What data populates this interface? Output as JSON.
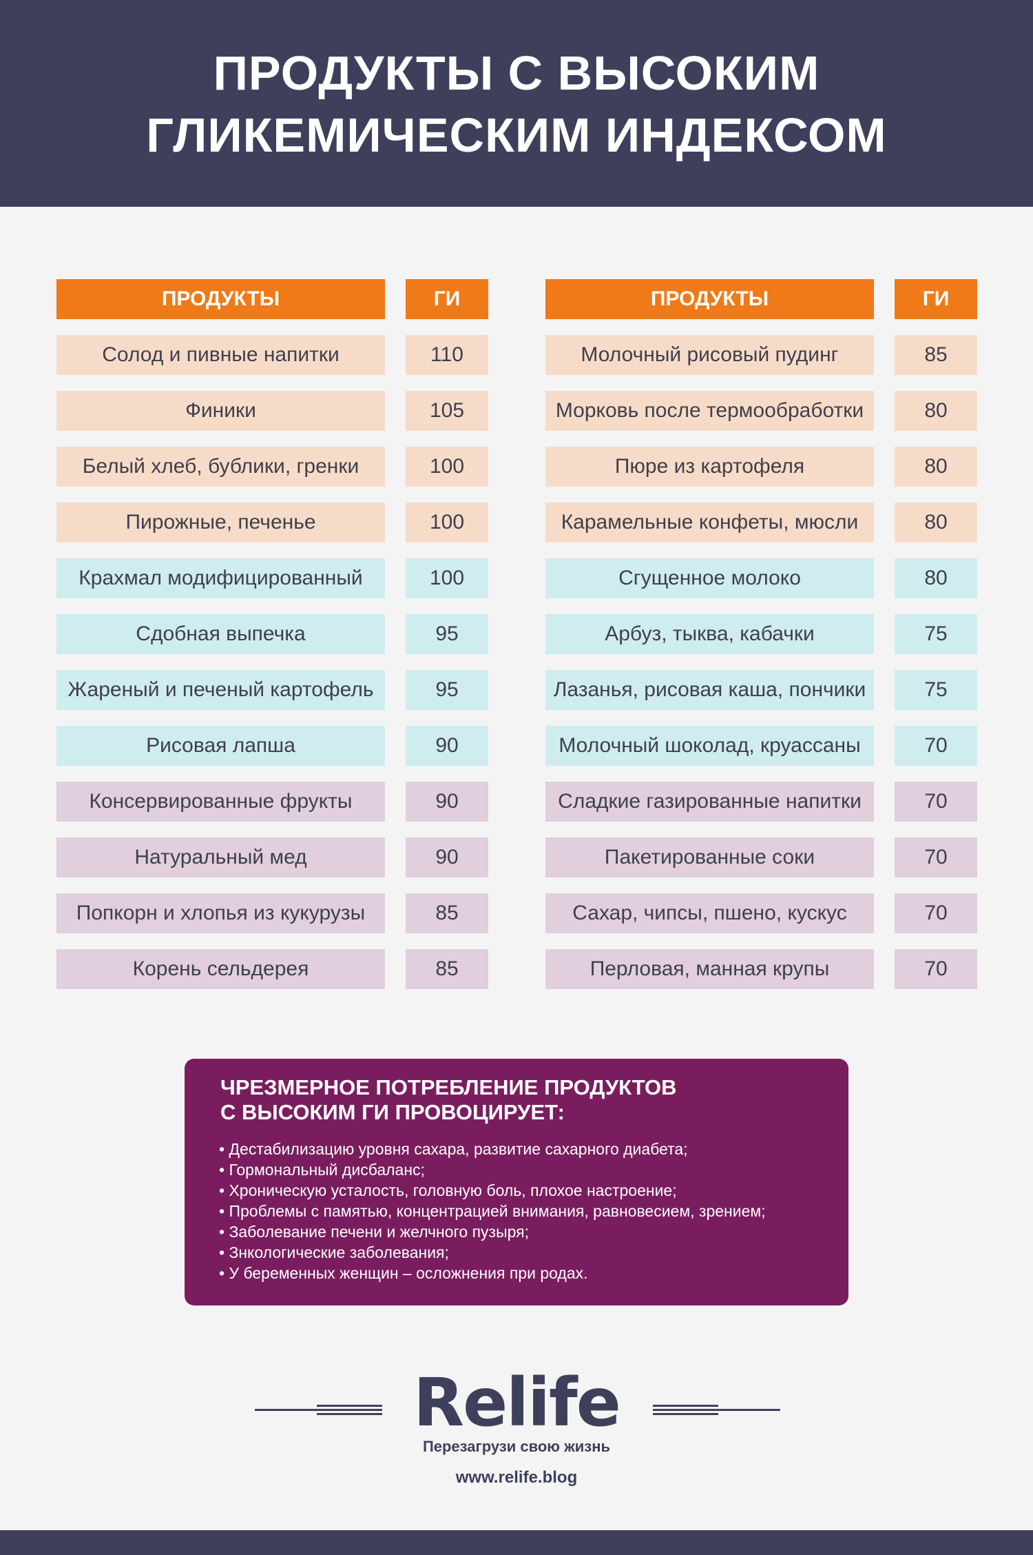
{
  "title": {
    "line1": "ПРОДУКТЫ С ВЫСОКИМ",
    "line2": "ГЛИКЕМИЧЕСКИМ ИНДЕКСОМ"
  },
  "table_headers": {
    "product": "ПРОДУКТЫ",
    "gi": "ГИ"
  },
  "left_table": [
    {
      "name": "Солод и пивные напитки",
      "gi": "110",
      "group": "peach"
    },
    {
      "name": "Финики",
      "gi": "105",
      "group": "peach"
    },
    {
      "name": "Белый хлеб, бублики, гренки",
      "gi": "100",
      "group": "peach"
    },
    {
      "name": "Пирожные, печенье",
      "gi": "100",
      "group": "peach"
    },
    {
      "name": "Крахмал модифицированный",
      "gi": "100",
      "group": "cyan"
    },
    {
      "name": "Сдобная выпечка",
      "gi": "95",
      "group": "cyan"
    },
    {
      "name": "Жареный и печеный картофель",
      "gi": "95",
      "group": "cyan"
    },
    {
      "name": "Рисовая лапша",
      "gi": "90",
      "group": "cyan"
    },
    {
      "name": "Консервированные фрукты",
      "gi": "90",
      "group": "lilac"
    },
    {
      "name": "Натуральный мед",
      "gi": "90",
      "group": "lilac"
    },
    {
      "name": "Попкорн и хлопья из кукурузы",
      "gi": "85",
      "group": "lilac"
    },
    {
      "name": "Корень сельдерея",
      "gi": "85",
      "group": "lilac"
    }
  ],
  "right_table": [
    {
      "name": "Молочный рисовый пудинг",
      "gi": "85",
      "group": "peach"
    },
    {
      "name": "Морковь после термообработки",
      "gi": "80",
      "group": "peach"
    },
    {
      "name": "Пюре из картофеля",
      "gi": "80",
      "group": "peach"
    },
    {
      "name": "Карамельные конфеты, мюсли",
      "gi": "80",
      "group": "peach"
    },
    {
      "name": "Сгущенное молоко",
      "gi": "80",
      "group": "cyan"
    },
    {
      "name": "Арбуз, тыква, кабачки",
      "gi": "75",
      "group": "cyan"
    },
    {
      "name": "Лазанья, рисовая каша, пончики",
      "gi": "75",
      "group": "cyan"
    },
    {
      "name": "Молочный шоколад, круассаны",
      "gi": "70",
      "group": "cyan"
    },
    {
      "name": "Сладкие газированные напитки",
      "gi": "70",
      "group": "lilac"
    },
    {
      "name": "Пакетированные соки",
      "gi": "70",
      "group": "lilac"
    },
    {
      "name": "Сахар, чипсы, пшено, кускус",
      "gi": "70",
      "group": "lilac"
    },
    {
      "name": "Перловая, манная крупы",
      "gi": "70",
      "group": "lilac"
    }
  ],
  "colors": {
    "header_bg": "#3e405b",
    "table_header": "#ef7a17",
    "peach": "#f6dcc8",
    "cyan": "#cfecee",
    "lilac": "#e1cfdd",
    "info_bg": "#7a1d5f"
  },
  "info": {
    "title_line1": "ЧРЕЗМЕРНОЕ ПОТРЕБЛЕНИЕ ПРОДУКТОВ",
    "title_line2": "С ВЫСОКИМ ГИ ПРОВОЦИРУЕТ:",
    "items": [
      "Дестабилизацию уровня сахара, развитие сахарного диабета;",
      "Гормональный дисбаланс;",
      "Хроническую усталость, головную боль, плохое настроение;",
      "Проблемы с памятью, концентрацией внимания, равновесием, зрением;",
      "Заболевание печени и желчного пузыря;",
      "Знкологические заболевания;",
      "У беременных женщин – осложнения при родах."
    ]
  },
  "brand": {
    "logo": "Relife",
    "slogan": "Перезагрузи свою жизнь",
    "site": "www.relife.blog"
  }
}
